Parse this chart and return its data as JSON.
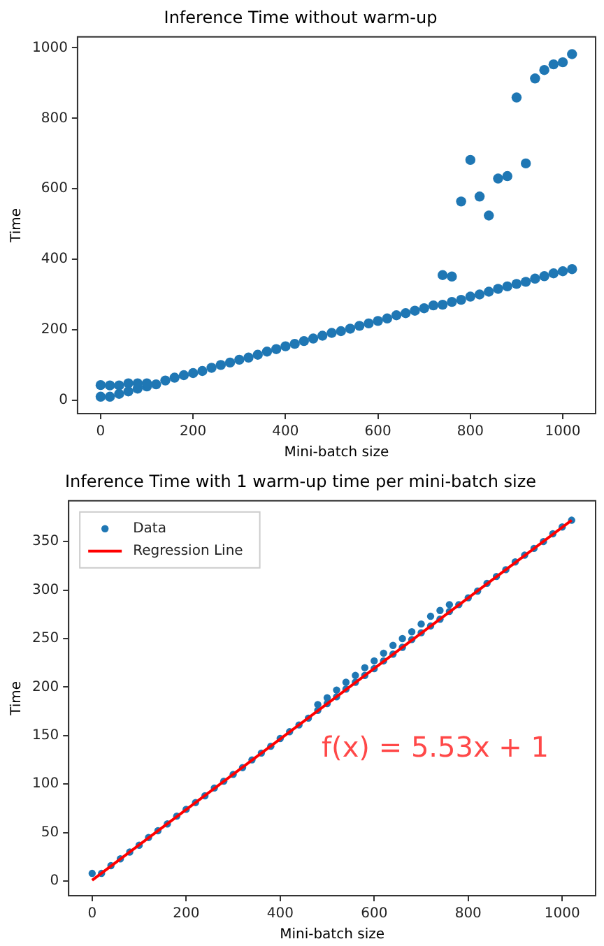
{
  "chart_data": [
    {
      "type": "scatter",
      "title": "Inference Time without warm-up",
      "xlabel": "Mini-batch size",
      "ylabel": "Time",
      "xlim": [
        -50,
        1071
      ],
      "xticks": [
        0,
        200,
        400,
        600,
        800,
        1000
      ],
      "ylim": [
        -38,
        1031
      ],
      "yticks": [
        0,
        200,
        400,
        600,
        800,
        1000
      ],
      "grid": false,
      "legend": false,
      "marker": "circle",
      "series": [
        {
          "color": "#1f77b4",
          "x": [
            0,
            20,
            40,
            60,
            80,
            100,
            120,
            140,
            160,
            180,
            200,
            220,
            240,
            260,
            280,
            300,
            320,
            340,
            360,
            380,
            400,
            420,
            440,
            460,
            480,
            500,
            520,
            540,
            560,
            580,
            600,
            620,
            640,
            660,
            680,
            700,
            720,
            740,
            760,
            780,
            800,
            820,
            840,
            860,
            880,
            900,
            920,
            940,
            960,
            980,
            1000,
            1020,
            0,
            20,
            40,
            60,
            80,
            100,
            740,
            760,
            780,
            800,
            820,
            840,
            860,
            880,
            900,
            920,
            940,
            960,
            980,
            1000,
            1020
          ],
          "values": [
            10,
            10,
            18,
            25,
            33,
            39,
            45,
            56,
            64,
            71,
            77,
            83,
            92,
            100,
            107,
            115,
            121,
            129,
            138,
            145,
            153,
            160,
            168,
            175,
            183,
            191,
            196,
            203,
            211,
            218,
            225,
            232,
            241,
            247,
            254,
            261,
            269,
            271,
            279,
            285,
            294,
            300,
            308,
            316,
            323,
            330,
            336,
            345,
            352,
            360,
            366,
            372,
            43,
            42,
            42,
            48,
            48,
            48,
            355,
            351,
            564,
            682,
            578,
            524,
            629,
            636,
            859,
            672,
            913,
            937,
            953,
            959,
            982
          ]
        }
      ]
    },
    {
      "type": "scatter",
      "title": "Inference Time with 1 warm-up time per mini-batch size",
      "xlabel": "Mini-batch size",
      "ylabel": "Time",
      "xlim": [
        -50,
        1071
      ],
      "xticks": [
        0,
        200,
        400,
        600,
        800,
        1000
      ],
      "ylim": [
        -15,
        392
      ],
      "yticks": [
        0,
        50,
        100,
        150,
        200,
        250,
        300,
        350
      ],
      "grid": false,
      "legend": "top left",
      "marker": "circle",
      "annotations": [
        "f(x) = 5.53x + 1"
      ],
      "series": [
        {
          "name": "Data",
          "color": "#1f77b4",
          "x": [
            0,
            20,
            40,
            60,
            80,
            100,
            120,
            140,
            160,
            180,
            200,
            220,
            240,
            260,
            280,
            300,
            320,
            340,
            360,
            380,
            400,
            420,
            440,
            460,
            480,
            500,
            520,
            540,
            560,
            580,
            600,
            620,
            640,
            660,
            680,
            700,
            720,
            740,
            760,
            780,
            800,
            820,
            840,
            860,
            880,
            900,
            920,
            940,
            960,
            980,
            1000,
            1020,
            480,
            500,
            520,
            540,
            560,
            580,
            600,
            620,
            640,
            660,
            680,
            700,
            720,
            740,
            760
          ],
          "values": [
            8,
            8,
            16,
            23,
            30,
            37,
            45,
            52,
            59,
            67,
            74,
            81,
            88,
            96,
            103,
            110,
            117,
            125,
            132,
            139,
            147,
            154,
            161,
            168,
            176,
            183,
            190,
            198,
            205,
            212,
            219,
            227,
            234,
            241,
            249,
            256,
            263,
            270,
            278,
            285,
            292,
            299,
            307,
            314,
            321,
            329,
            336,
            343,
            350,
            358,
            365,
            372,
            182,
            189,
            197,
            205,
            212,
            220,
            227,
            235,
            243,
            250,
            257,
            265,
            273,
            279,
            285
          ]
        },
        {
          "name": "Regression Line",
          "type": "line",
          "color": "#ff0000",
          "marker": "none",
          "x": [
            0,
            1020
          ],
          "values": [
            1,
            372
          ]
        }
      ]
    }
  ]
}
